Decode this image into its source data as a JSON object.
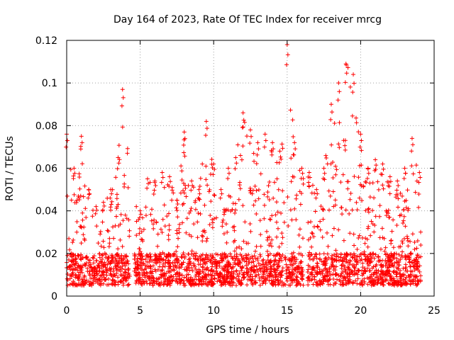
{
  "chart_data": {
    "type": "scatter",
    "title": "Day 164 of 2023, Rate Of TEC Index for receiver mrcg",
    "xlabel": "GPS time / hours",
    "ylabel": "ROTI / TECUs",
    "xlim": [
      0,
      25
    ],
    "ylim": [
      0,
      0.12
    ],
    "x_ticks": [
      "0",
      "5",
      "10",
      "15",
      "20",
      "25"
    ],
    "y_ticks": [
      "0",
      "0.02",
      "0.04",
      "0.06",
      "0.08",
      "0.1",
      "0.12"
    ],
    "grid": true,
    "marker": "+",
    "color": "#ff0000",
    "profile_note": "dense scatter; values below represent the upper envelope (hourly maxima) of the plotted points",
    "envelope": [
      {
        "x": 0.0,
        "y": 0.076
      },
      {
        "x": 0.5,
        "y": 0.06
      },
      {
        "x": 1.0,
        "y": 0.075
      },
      {
        "x": 1.5,
        "y": 0.05
      },
      {
        "x": 2.0,
        "y": 0.042
      },
      {
        "x": 2.5,
        "y": 0.044
      },
      {
        "x": 3.0,
        "y": 0.05
      },
      {
        "x": 3.5,
        "y": 0.065
      },
      {
        "x": 3.8,
        "y": 0.097
      },
      {
        "x": 4.5,
        "y": 0.064
      },
      {
        "x": 5.0,
        "y": 0.04
      },
      {
        "x": 5.5,
        "y": 0.055
      },
      {
        "x": 6.0,
        "y": 0.054
      },
      {
        "x": 6.5,
        "y": 0.058
      },
      {
        "x": 7.0,
        "y": 0.056
      },
      {
        "x": 7.5,
        "y": 0.045
      },
      {
        "x": 8.0,
        "y": 0.077
      },
      {
        "x": 8.5,
        "y": 0.054
      },
      {
        "x": 9.0,
        "y": 0.05
      },
      {
        "x": 9.5,
        "y": 0.082
      },
      {
        "x": 10.0,
        "y": 0.062
      },
      {
        "x": 10.5,
        "y": 0.05
      },
      {
        "x": 11.0,
        "y": 0.06
      },
      {
        "x": 11.5,
        "y": 0.065
      },
      {
        "x": 12.0,
        "y": 0.086
      },
      {
        "x": 12.5,
        "y": 0.078
      },
      {
        "x": 13.0,
        "y": 0.072
      },
      {
        "x": 13.5,
        "y": 0.076
      },
      {
        "x": 14.0,
        "y": 0.072
      },
      {
        "x": 14.5,
        "y": 0.068
      },
      {
        "x": 15.0,
        "y": 0.118
      },
      {
        "x": 15.5,
        "y": 0.072
      },
      {
        "x": 16.0,
        "y": 0.06
      },
      {
        "x": 16.5,
        "y": 0.058
      },
      {
        "x": 17.0,
        "y": 0.05
      },
      {
        "x": 17.5,
        "y": 0.06
      },
      {
        "x": 18.0,
        "y": 0.09
      },
      {
        "x": 18.5,
        "y": 0.1
      },
      {
        "x": 19.0,
        "y": 0.109
      },
      {
        "x": 19.5,
        "y": 0.104
      },
      {
        "x": 20.0,
        "y": 0.076
      },
      {
        "x": 20.5,
        "y": 0.06
      },
      {
        "x": 21.0,
        "y": 0.064
      },
      {
        "x": 21.5,
        "y": 0.062
      },
      {
        "x": 22.0,
        "y": 0.056
      },
      {
        "x": 22.5,
        "y": 0.054
      },
      {
        "x": 23.0,
        "y": 0.06
      },
      {
        "x": 23.5,
        "y": 0.074
      },
      {
        "x": 24.0,
        "y": 0.058
      }
    ],
    "baseline_range": [
      0.005,
      0.02
    ],
    "data_gaps": [
      [
        4.3,
        4.6
      ],
      [
        16.1,
        16.4
      ],
      [
        17.1,
        17.2
      ]
    ]
  }
}
